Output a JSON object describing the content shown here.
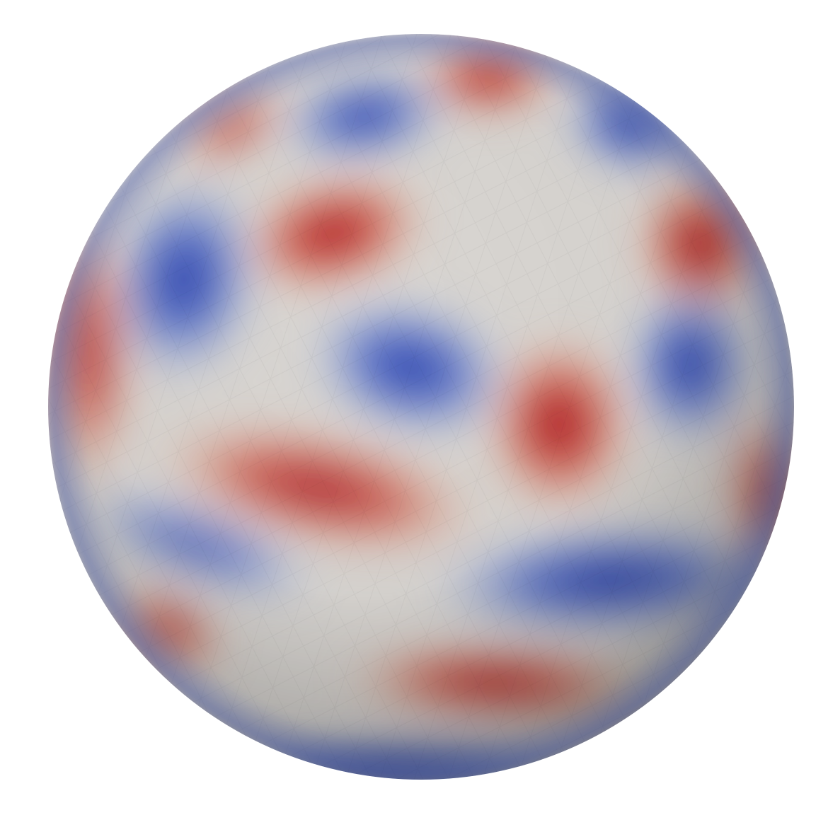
{
  "scene": {
    "object": "sphere",
    "colormap": "cool-to-warm",
    "colors": {
      "background": "#ffffff",
      "low": "#2b3f9f",
      "mid": "#dcdcdc",
      "high": "#a8071f"
    },
    "blobs": [
      {
        "sign": "positive",
        "u": 0.64,
        "v": 0.12
      },
      {
        "sign": "negative",
        "u": 0.47,
        "v": 0.15
      },
      {
        "sign": "negative",
        "u": 0.8,
        "v": 0.17
      },
      {
        "sign": "positive",
        "u": 0.41,
        "v": 0.31
      },
      {
        "sign": "positive",
        "u": 0.88,
        "v": 0.31
      },
      {
        "sign": "negative",
        "u": 0.24,
        "v": 0.37
      },
      {
        "sign": "negative",
        "u": 0.55,
        "v": 0.46
      },
      {
        "sign": "positive",
        "u": 0.72,
        "v": 0.54
      },
      {
        "sign": "negative",
        "u": 0.87,
        "v": 0.45
      },
      {
        "sign": "positive",
        "u": 0.11,
        "v": 0.44
      },
      {
        "sign": "positive",
        "u": 0.39,
        "v": 0.65
      },
      {
        "sign": "negative",
        "u": 0.73,
        "v": 0.76
      },
      {
        "sign": "positive",
        "u": 0.63,
        "v": 0.87
      },
      {
        "sign": "positive",
        "u": 0.18,
        "v": 0.8
      },
      {
        "sign": "negative",
        "u": 0.48,
        "v": 0.96
      }
    ]
  }
}
